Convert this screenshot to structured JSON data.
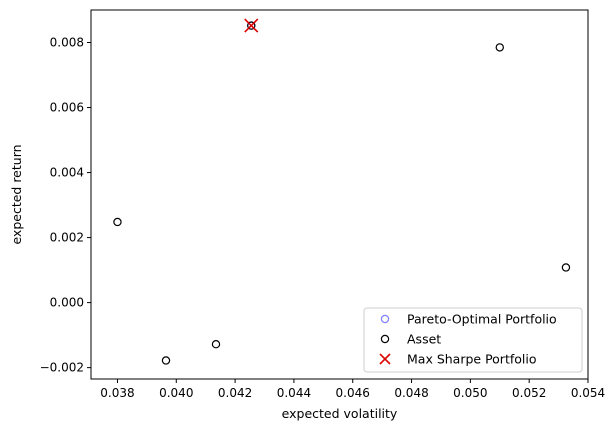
{
  "chart_data": {
    "type": "scatter",
    "title": "",
    "xlabel": "expected volatility",
    "ylabel": "expected return",
    "xlim": [
      0.0371,
      0.054
    ],
    "ylim": [
      -0.00235,
      0.009
    ],
    "xticks": [
      "0.038",
      "0.040",
      "0.042",
      "0.044",
      "0.046",
      "0.048",
      "0.050",
      "0.052",
      "0.054"
    ],
    "xtick_values": [
      0.038,
      0.04,
      0.042,
      0.044,
      0.046,
      0.048,
      0.05,
      0.052,
      0.054
    ],
    "yticks": [
      "−0.002",
      "0.000",
      "0.002",
      "0.004",
      "0.006",
      "0.008"
    ],
    "ytick_values": [
      -0.002,
      0.0,
      0.002,
      0.004,
      0.006,
      0.008
    ],
    "grid": false,
    "legend_position": "bottom-right",
    "series": [
      {
        "name": "Pareto-Optimal Portfolio",
        "marker": "open-circle",
        "color": "#8080ff",
        "points": [
          [
            0.04255,
            0.00852
          ]
        ]
      },
      {
        "name": "Asset",
        "marker": "open-circle",
        "color": "#000000",
        "points": [
          [
            0.038,
            0.00248
          ],
          [
            0.03965,
            -0.00178
          ],
          [
            0.04135,
            -0.00128
          ],
          [
            0.04255,
            0.00852
          ],
          [
            0.051,
            0.00785
          ],
          [
            0.05325,
            0.00108
          ]
        ]
      },
      {
        "name": "Max Sharpe Portfolio",
        "marker": "x",
        "color": "#dd0000",
        "points": [
          [
            0.04255,
            0.00852
          ]
        ]
      }
    ]
  }
}
